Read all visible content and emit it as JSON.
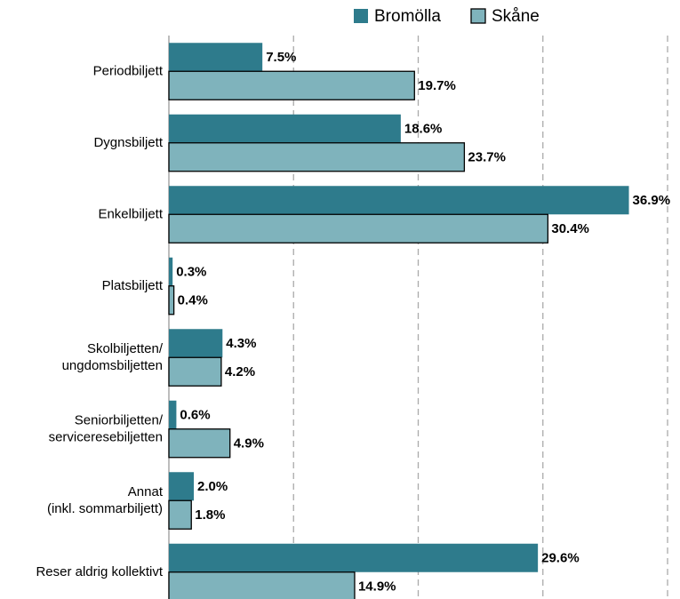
{
  "chart_data": {
    "type": "barh",
    "categories": [
      [
        "Periodbiljett"
      ],
      [
        "Dygnsbiljett"
      ],
      [
        "Enkelbiljett"
      ],
      [
        "Platsbiljett"
      ],
      [
        "Skolbiljetten/",
        "ungdomsbiljetten"
      ],
      [
        "Seniorbiljetten/",
        "serviceresebiljetten"
      ],
      [
        "Annat",
        "(inkl. sommarbiljett)"
      ],
      [
        "Reser aldrig kollektivt"
      ]
    ],
    "series": [
      {
        "name": "Bromölla",
        "color": "#2e7b8c",
        "values": [
          7.5,
          18.6,
          36.9,
          0.3,
          4.3,
          0.6,
          2.0,
          29.6
        ],
        "value_labels": [
          "7.5%",
          "18.6%",
          "36.9%",
          "0.3%",
          "4.3%",
          "0.6%",
          "2.0%",
          "29.6%"
        ]
      },
      {
        "name": "Skåne",
        "color": "#7fb3bc",
        "values": [
          19.7,
          23.7,
          30.4,
          0.4,
          4.2,
          4.9,
          1.8,
          14.9
        ],
        "value_labels": [
          "19.7%",
          "23.7%",
          "30.4%",
          "0.4%",
          "4.2%",
          "4.9%",
          "1.8%",
          "14.9%"
        ]
      }
    ],
    "xlim": [
      0,
      40
    ],
    "xticks": [
      10,
      20,
      30,
      40
    ],
    "grid": true,
    "legend": "top"
  }
}
